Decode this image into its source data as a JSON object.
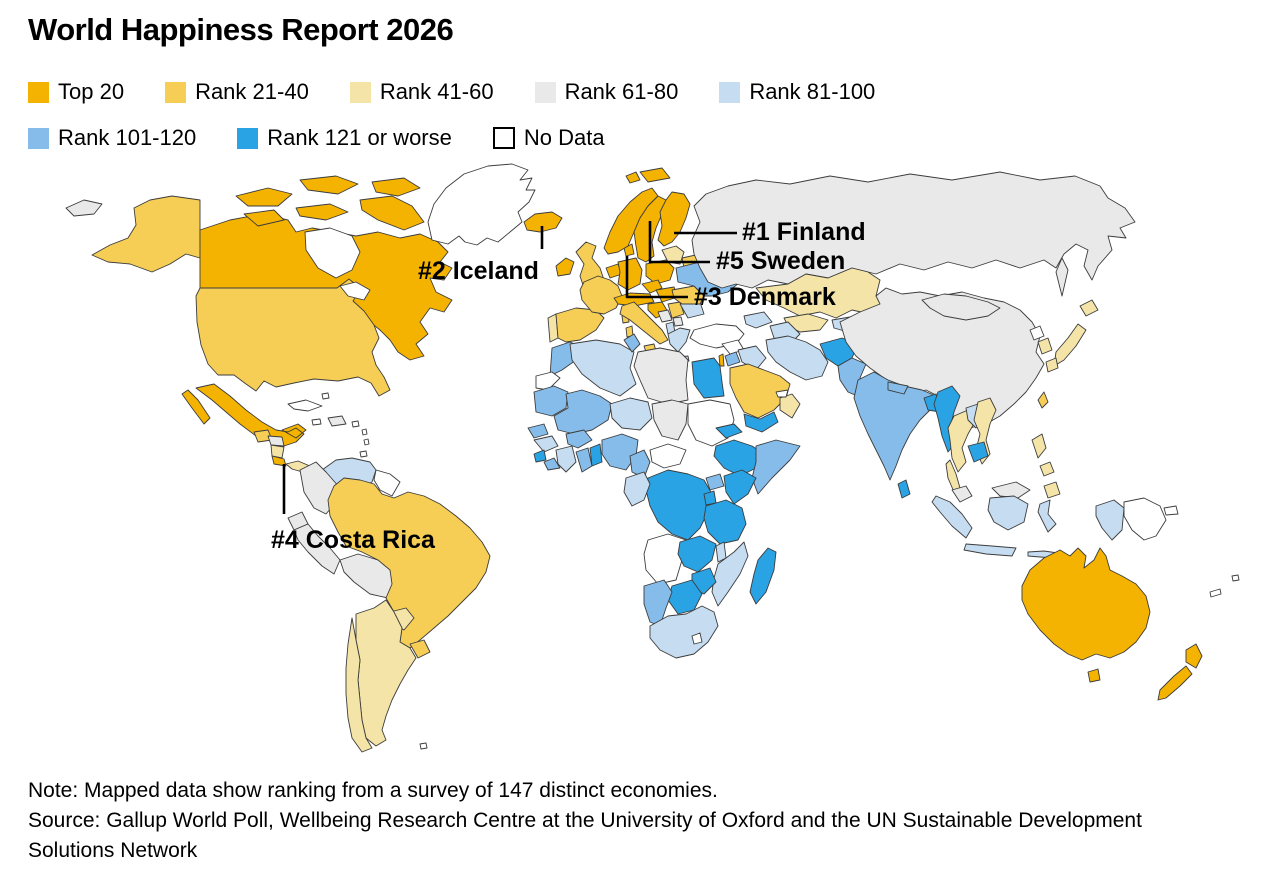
{
  "title": "World Happiness Report 2026",
  "legend": {
    "items": [
      {
        "label": "Top 20",
        "color": "#F5B301",
        "row": 1,
        "outlined": false
      },
      {
        "label": "Rank 21-40",
        "color": "#F6CE55",
        "row": 1,
        "outlined": false
      },
      {
        "label": "Rank 41-60",
        "color": "#F4E4A7",
        "row": 1,
        "outlined": false
      },
      {
        "label": "Rank 61-80",
        "color": "#E9E9E9",
        "row": 1,
        "outlined": false
      },
      {
        "label": "Rank 81-100",
        "color": "#C5DCF1",
        "row": 1,
        "outlined": false
      },
      {
        "label": "Rank 101-120",
        "color": "#85BCEA",
        "row": 2,
        "outlined": false
      },
      {
        "label": "Rank 121 or worse",
        "color": "#29A3E3",
        "row": 2,
        "outlined": false
      },
      {
        "label": "No Data",
        "color": "#FFFFFF",
        "row": 2,
        "outlined": true
      }
    ]
  },
  "annotations": [
    {
      "rank": 1,
      "country": "Finland",
      "label": "#1 Finland"
    },
    {
      "rank": 2,
      "country": "Iceland",
      "label": "#2 Iceland"
    },
    {
      "rank": 3,
      "country": "Denmark",
      "label": "#3 Denmark"
    },
    {
      "rank": 4,
      "country": "Costa Rica",
      "label": "#4 Costa Rica"
    },
    {
      "rank": 5,
      "country": "Sweden",
      "label": "#5 Sweden"
    }
  ],
  "notes": {
    "note": "Note: Mapped data show ranking from a survey of 147 distinct economies.",
    "source": "Source: Gallup World Poll, Wellbeing Research Centre at the University of Oxford and the UN Sustainable Development Solutions Network"
  },
  "chart_data": {
    "type": "heatmap",
    "subtype": "world-choropleth",
    "title": "World Happiness Report 2026",
    "legend_position": "top",
    "categories": [
      "Top 20",
      "Rank 21-40",
      "Rank 41-60",
      "Rank 61-80",
      "Rank 81-100",
      "Rank 101-120",
      "Rank 121 or worse",
      "No Data"
    ],
    "palette": {
      "top20": "#F5B301",
      "rank21_40": "#F6CE55",
      "rank41_60": "#F4E4A7",
      "rank61_80": "#E9E9E9",
      "rank81_100": "#C5DCF1",
      "rank101_120": "#85BCEA",
      "rank121": "#29A3E3",
      "no_data": "#FFFFFF",
      "water": "#FFFFFF"
    },
    "annotations": [
      {
        "rank": 1,
        "country": "Finland"
      },
      {
        "rank": 2,
        "country": "Iceland"
      },
      {
        "rank": 3,
        "country": "Denmark"
      },
      {
        "rank": 4,
        "country": "Costa Rica"
      },
      {
        "rank": 5,
        "country": "Sweden"
      }
    ],
    "economies_surveyed": 147,
    "regions": {
      "canada": "top20",
      "canada-arctic-1": "top20",
      "canada-arctic-2": "top20",
      "canada-arctic-3": "top20",
      "canada-arctic-4": "top20",
      "canada-arctic-5": "top20",
      "canada-arctic-6": "top20",
      "alaska": "rank21_40",
      "usa": "rank21_40",
      "mexico": "top20",
      "guatemala": "rank21_40",
      "honduras": "rank61_80",
      "nicaragua": "rank41_60",
      "costa-rica": "top20",
      "panama": "rank41_60",
      "cuba": "no_data",
      "jamaica": "no_data",
      "bahamas": "no_data",
      "hispaniola": "rank61_80",
      "puerto-rico": "no_data",
      "antilles-1": "no_data",
      "antilles-2": "no_data",
      "trinidad": "no_data",
      "greenland": "no_data",
      "iceland": "top20",
      "svalbard": "top20",
      "russia-chukotka-west": "rank61_80",
      "venezuela": "rank81_100",
      "colombia": "rank61_80",
      "guyanas": "no_data",
      "ecuador": "rank61_80",
      "peru": "rank61_80",
      "bolivia": "rank61_80",
      "brazil": "rank21_40",
      "paraguay": "rank41_60",
      "uruguay": "rank21_40",
      "argentina": "rank41_60",
      "chile": "rank41_60",
      "falklands": "no_data",
      "ireland": "top20",
      "uk": "rank21_40",
      "portugal": "rank41_60",
      "spain": "rank21_40",
      "france": "rank21_40",
      "corsica": "rank21_40",
      "benelux": "top20",
      "germany": "top20",
      "denmark": "top20",
      "norway": "top20",
      "sweden": "top20",
      "finland": "top20",
      "baltics": "rank41_60",
      "belarus": "rank21_40",
      "poland": "top20",
      "czechia": "top20",
      "austria-switzerland": "top20",
      "hungary-slovakia": "top20",
      "italy": "rank21_40",
      "sicily": "rank21_40",
      "sardinia": "rank21_40",
      "slovenia-croatia": "top20",
      "bosnia": "rank61_80",
      "serbia": "rank21_40",
      "albania": "rank81_100",
      "macedonia": "rank61_80",
      "greece": "rank81_100",
      "crete": "rank81_100",
      "bulgaria": "rank81_100",
      "romania": "rank21_40",
      "ukraine": "rank101_120",
      "russia": "rank61_80",
      "sakhalin": "rank61_80",
      "kazakhstan": "rank41_60",
      "uzbekistan": "rank41_60",
      "turkmenistan": "rank81_100",
      "kyrgyzstan-tajikistan": "rank81_100",
      "caucasus": "rank81_100",
      "turkey": "no_data",
      "syria": "no_data",
      "israel": "top20",
      "jordan": "rank101_120",
      "iraq": "rank81_100",
      "iran": "rank81_100",
      "afghanistan": "rank121",
      "pakistan": "rank101_120",
      "saudi-arabia": "rank21_40",
      "yemen": "rank121",
      "oman": "rank41_60",
      "uae": "no_data",
      "egypt": "rank121",
      "morocco": "rank101_120",
      "western-sahara": "no_data",
      "algeria": "rank81_100",
      "tunisia": "rank101_120",
      "libya": "rank61_80",
      "mauritania": "rank101_120",
      "mali": "rank101_120",
      "niger": "rank81_100",
      "chad": "rank61_80",
      "sudan": "no_data",
      "eritrea": "rank121",
      "ethiopia": "rank121",
      "somalia": "rank101_120",
      "senegal": "rank101_120",
      "guinea": "rank81_100",
      "sierra-leone": "rank121",
      "liberia": "rank101_120",
      "ivory-coast": "rank81_100",
      "burkina-faso": "rank101_120",
      "ghana": "rank101_120",
      "togo-benin": "rank121",
      "nigeria": "rank101_120",
      "cameroon": "rank101_120",
      "car": "no_data",
      "drc": "rank121",
      "congo-gabon": "rank81_100",
      "uganda": "rank101_120",
      "kenya": "rank121",
      "rwanda-burundi": "rank121",
      "tanzania": "rank121",
      "angola": "no_data",
      "zambia": "rank121",
      "malawi": "rank81_100",
      "mozambique": "rank81_100",
      "zimbabwe": "rank121",
      "botswana": "rank121",
      "namibia": "rank101_120",
      "south-africa": "rank81_100",
      "lesotho": "no_data",
      "madagascar": "rank121",
      "china": "rank61_80",
      "mongolia": "rank61_80",
      "north-korea": "no_data",
      "south-korea": "rank41_60",
      "japan-hokkaido": "rank41_60",
      "japan-honshu": "rank41_60",
      "japan-kyushu": "rank41_60",
      "taiwan": "rank21_40",
      "india": "rank101_120",
      "nepal": "rank101_120",
      "bangladesh": "rank121",
      "sri-lanka": "rank121",
      "myanmar": "rank121",
      "thailand": "rank41_60",
      "laos": "rank81_100",
      "vietnam": "rank41_60",
      "cambodia": "rank121",
      "malaysia": "rank61_80",
      "malaysia-borneo": "rank61_80",
      "indonesia-sumatra": "rank81_100",
      "indonesia-java": "rank81_100",
      "indonesia-kalimantan": "rank81_100",
      "indonesia-sulawesi": "rank81_100",
      "indonesia-papua": "rank81_100",
      "indonesia-lesser-sunda": "rank81_100",
      "png": "no_data",
      "png-newbritain": "no_data",
      "philippines-luzon": "rank41_60",
      "philippines-visayas": "rank41_60",
      "philippines-mindanao": "rank41_60",
      "australia": "top20",
      "tasmania": "top20",
      "nz-north": "top20",
      "nz-south": "top20",
      "fiji-1": "no_data",
      "new-caledonia": "no_data",
      "hudson-bay": "water",
      "great-lakes": "water"
    }
  }
}
